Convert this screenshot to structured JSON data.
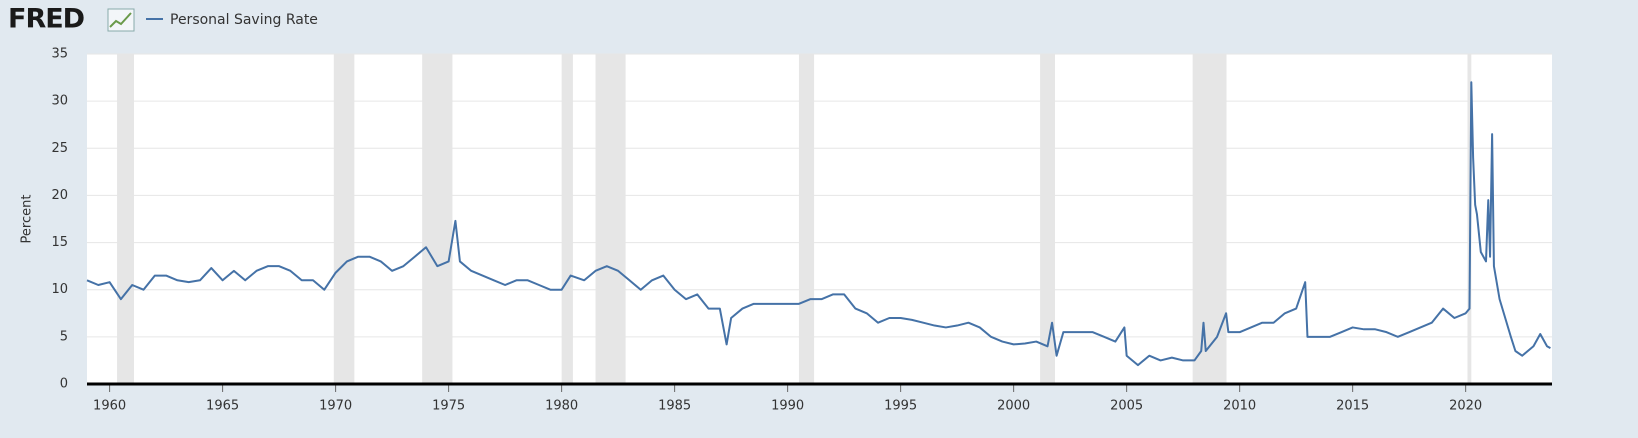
{
  "chart_data": {
    "type": "line",
    "logo": "FRED",
    "y_label": "Percent",
    "x": [
      1959,
      1959.5,
      1960,
      1960.5,
      1961,
      1961.5,
      1962,
      1962.5,
      1963,
      1963.5,
      1964,
      1964.5,
      1965,
      1965.5,
      1966,
      1966.5,
      1967,
      1967.5,
      1968,
      1968.5,
      1969,
      1969.5,
      1970,
      1970.5,
      1971,
      1971.5,
      1972,
      1972.5,
      1973,
      1973.5,
      1974,
      1974.5,
      1975,
      1975.3,
      1975.5,
      1976,
      1976.5,
      1977,
      1977.5,
      1978,
      1978.5,
      1979,
      1979.5,
      1980,
      1980.4,
      1981,
      1981.5,
      1982,
      1982.5,
      1983,
      1983.5,
      1984,
      1984.5,
      1985,
      1985.5,
      1986,
      1986.5,
      1987,
      1987.3,
      1987.5,
      1988,
      1988.5,
      1989,
      1989.5,
      1990,
      1990.5,
      1991,
      1991.5,
      1992,
      1992.5,
      1993,
      1993.5,
      1994,
      1994.5,
      1995,
      1995.5,
      1996,
      1996.5,
      1997,
      1997.5,
      1998,
      1998.5,
      1999,
      1999.5,
      2000,
      2000.5,
      2001,
      2001.5,
      2001.7,
      2001.9,
      2002.2,
      2002.5,
      2003,
      2003.5,
      2004,
      2004.5,
      2004.9,
      2005,
      2005.5,
      2006,
      2006.5,
      2007,
      2007.5,
      2008,
      2008.3,
      2008.4,
      2008.5,
      2009,
      2009.4,
      2009.5,
      2010,
      2010.5,
      2011,
      2011.5,
      2012,
      2012.5,
      2012.9,
      2013,
      2013.5,
      2014,
      2014.5,
      2015,
      2015.5,
      2016,
      2016.5,
      2017,
      2017.5,
      2018,
      2018.5,
      2019,
      2019.5,
      2020,
      2020.17,
      2020.25,
      2020.33,
      2020.42,
      2020.5,
      2020.67,
      2020.9,
      2021,
      2021.08,
      2021.17,
      2021.25,
      2021.5,
      2021.75,
      2022,
      2022.2,
      2022.5,
      2023,
      2023.3,
      2023.6,
      2023.75
    ],
    "series": [
      {
        "name": "Personal Saving Rate",
        "color": "#4572a7",
        "values": [
          11,
          10.5,
          10.8,
          9,
          10.5,
          10,
          11.5,
          11.5,
          11,
          10.8,
          11,
          12.3,
          11,
          12,
          11,
          12,
          12.5,
          12.5,
          12,
          11,
          11,
          10,
          11.8,
          13,
          13.5,
          13.5,
          13,
          12,
          12.5,
          13.5,
          14.5,
          12.5,
          13,
          17.3,
          13,
          12,
          11.5,
          11,
          10.5,
          11,
          11,
          10.5,
          10,
          10,
          11.5,
          11,
          12,
          12.5,
          12,
          11,
          10,
          11,
          11.5,
          10,
          9,
          9.5,
          8,
          8,
          4.2,
          7,
          8,
          8.5,
          8.5,
          8.5,
          8.5,
          8.5,
          9,
          9,
          9.5,
          9.5,
          8,
          7.5,
          6.5,
          7,
          7,
          6.8,
          6.5,
          6.2,
          6,
          6.2,
          6.5,
          6,
          5,
          4.5,
          4.2,
          4.3,
          4.5,
          4,
          6.5,
          3,
          5.5,
          5.5,
          5.5,
          5.5,
          5,
          4.5,
          6,
          3,
          2,
          3,
          2.5,
          2.8,
          2.5,
          2.5,
          3.5,
          6.5,
          3.5,
          5,
          7.5,
          5.5,
          5.5,
          6,
          6.5,
          6.5,
          7.5,
          8,
          10.8,
          5,
          5,
          5,
          5.5,
          6,
          5.8,
          5.8,
          5.5,
          5,
          5.5,
          6,
          6.5,
          8,
          7,
          7.5,
          8,
          32,
          24,
          19,
          18,
          14,
          13,
          19.5,
          13.5,
          26.5,
          12.5,
          9,
          7,
          5,
          3.5,
          3,
          4,
          5.3,
          4,
          3.8
        ]
      }
    ],
    "recessions": [
      [
        1960.33,
        1961.08
      ],
      [
        1969.92,
        1970.83
      ],
      [
        1973.83,
        1975.17
      ],
      [
        1980.0,
        1980.5
      ],
      [
        1981.5,
        1982.83
      ],
      [
        1990.5,
        1991.17
      ],
      [
        2001.17,
        2001.83
      ],
      [
        2007.92,
        2009.42
      ],
      [
        2020.08,
        2020.25
      ]
    ],
    "xlim": [
      1959,
      2023.82
    ],
    "xticks": [
      1960,
      1965,
      1970,
      1975,
      1980,
      1985,
      1990,
      1995,
      2000,
      2005,
      2010,
      2015,
      2020
    ],
    "ylim": [
      0,
      35
    ],
    "yticks": [
      0,
      5,
      10,
      15,
      20,
      25,
      30,
      35
    ],
    "grid": true
  }
}
